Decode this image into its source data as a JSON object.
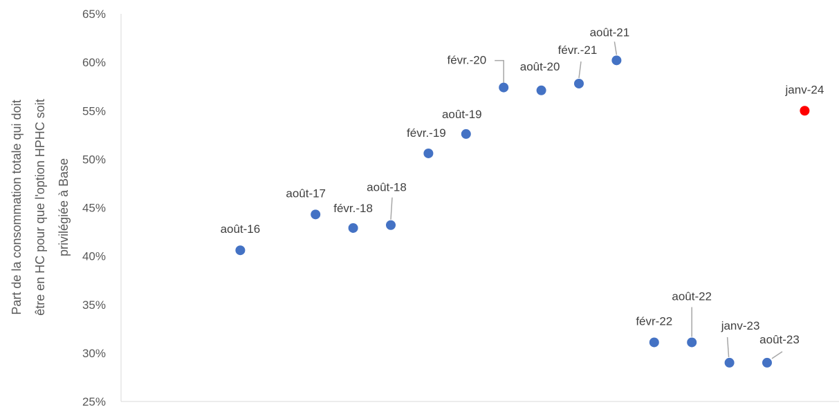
{
  "chart_data": {
    "type": "scatter",
    "title": "",
    "xlabel": "",
    "ylabel": [
      "Part de la consommation totale qui doit",
      "être en HC pour que l'option HPHC soit",
      "privilégiée à Base"
    ],
    "ylim": [
      0.25,
      0.65
    ],
    "yticks": [
      0.25,
      0.3,
      0.35,
      0.4,
      0.45,
      0.5,
      0.55,
      0.6,
      0.65
    ],
    "ytick_labels": [
      "25%",
      "30%",
      "35%",
      "40%",
      "45%",
      "50%",
      "55%",
      "60%",
      "65%"
    ],
    "xlim": [
      0,
      18
    ],
    "grid": false,
    "legend": "none",
    "colors": {
      "default": "#4472C4",
      "highlight": "#FF0000"
    },
    "points": [
      {
        "label": "août-16",
        "x": 1,
        "y": 0.406,
        "color": "default"
      },
      {
        "label": "août-17",
        "x": 3,
        "y": 0.443,
        "color": "default"
      },
      {
        "label": "févr.-18",
        "x": 4,
        "y": 0.429,
        "color": "default"
      },
      {
        "label": "août-18",
        "x": 5,
        "y": 0.432,
        "color": "default"
      },
      {
        "label": "févr.-19",
        "x": 6,
        "y": 0.506,
        "color": "default"
      },
      {
        "label": "août-19",
        "x": 7,
        "y": 0.526,
        "color": "default"
      },
      {
        "label": "févr.-20",
        "x": 8,
        "y": 0.574,
        "color": "default"
      },
      {
        "label": "août-20",
        "x": 9,
        "y": 0.571,
        "color": "default"
      },
      {
        "label": "févr.-21",
        "x": 10,
        "y": 0.578,
        "color": "default"
      },
      {
        "label": "août-21",
        "x": 11,
        "y": 0.602,
        "color": "default"
      },
      {
        "label": "févr-22",
        "x": 12,
        "y": 0.311,
        "color": "default"
      },
      {
        "label": "août-22",
        "x": 13,
        "y": 0.311,
        "color": "default"
      },
      {
        "label": "janv-23",
        "x": 14,
        "y": 0.29,
        "color": "default"
      },
      {
        "label": "août-23",
        "x": 15,
        "y": 0.29,
        "color": "default"
      },
      {
        "label": "janv-24",
        "x": 16,
        "y": 0.55,
        "color": "highlight"
      }
    ]
  }
}
